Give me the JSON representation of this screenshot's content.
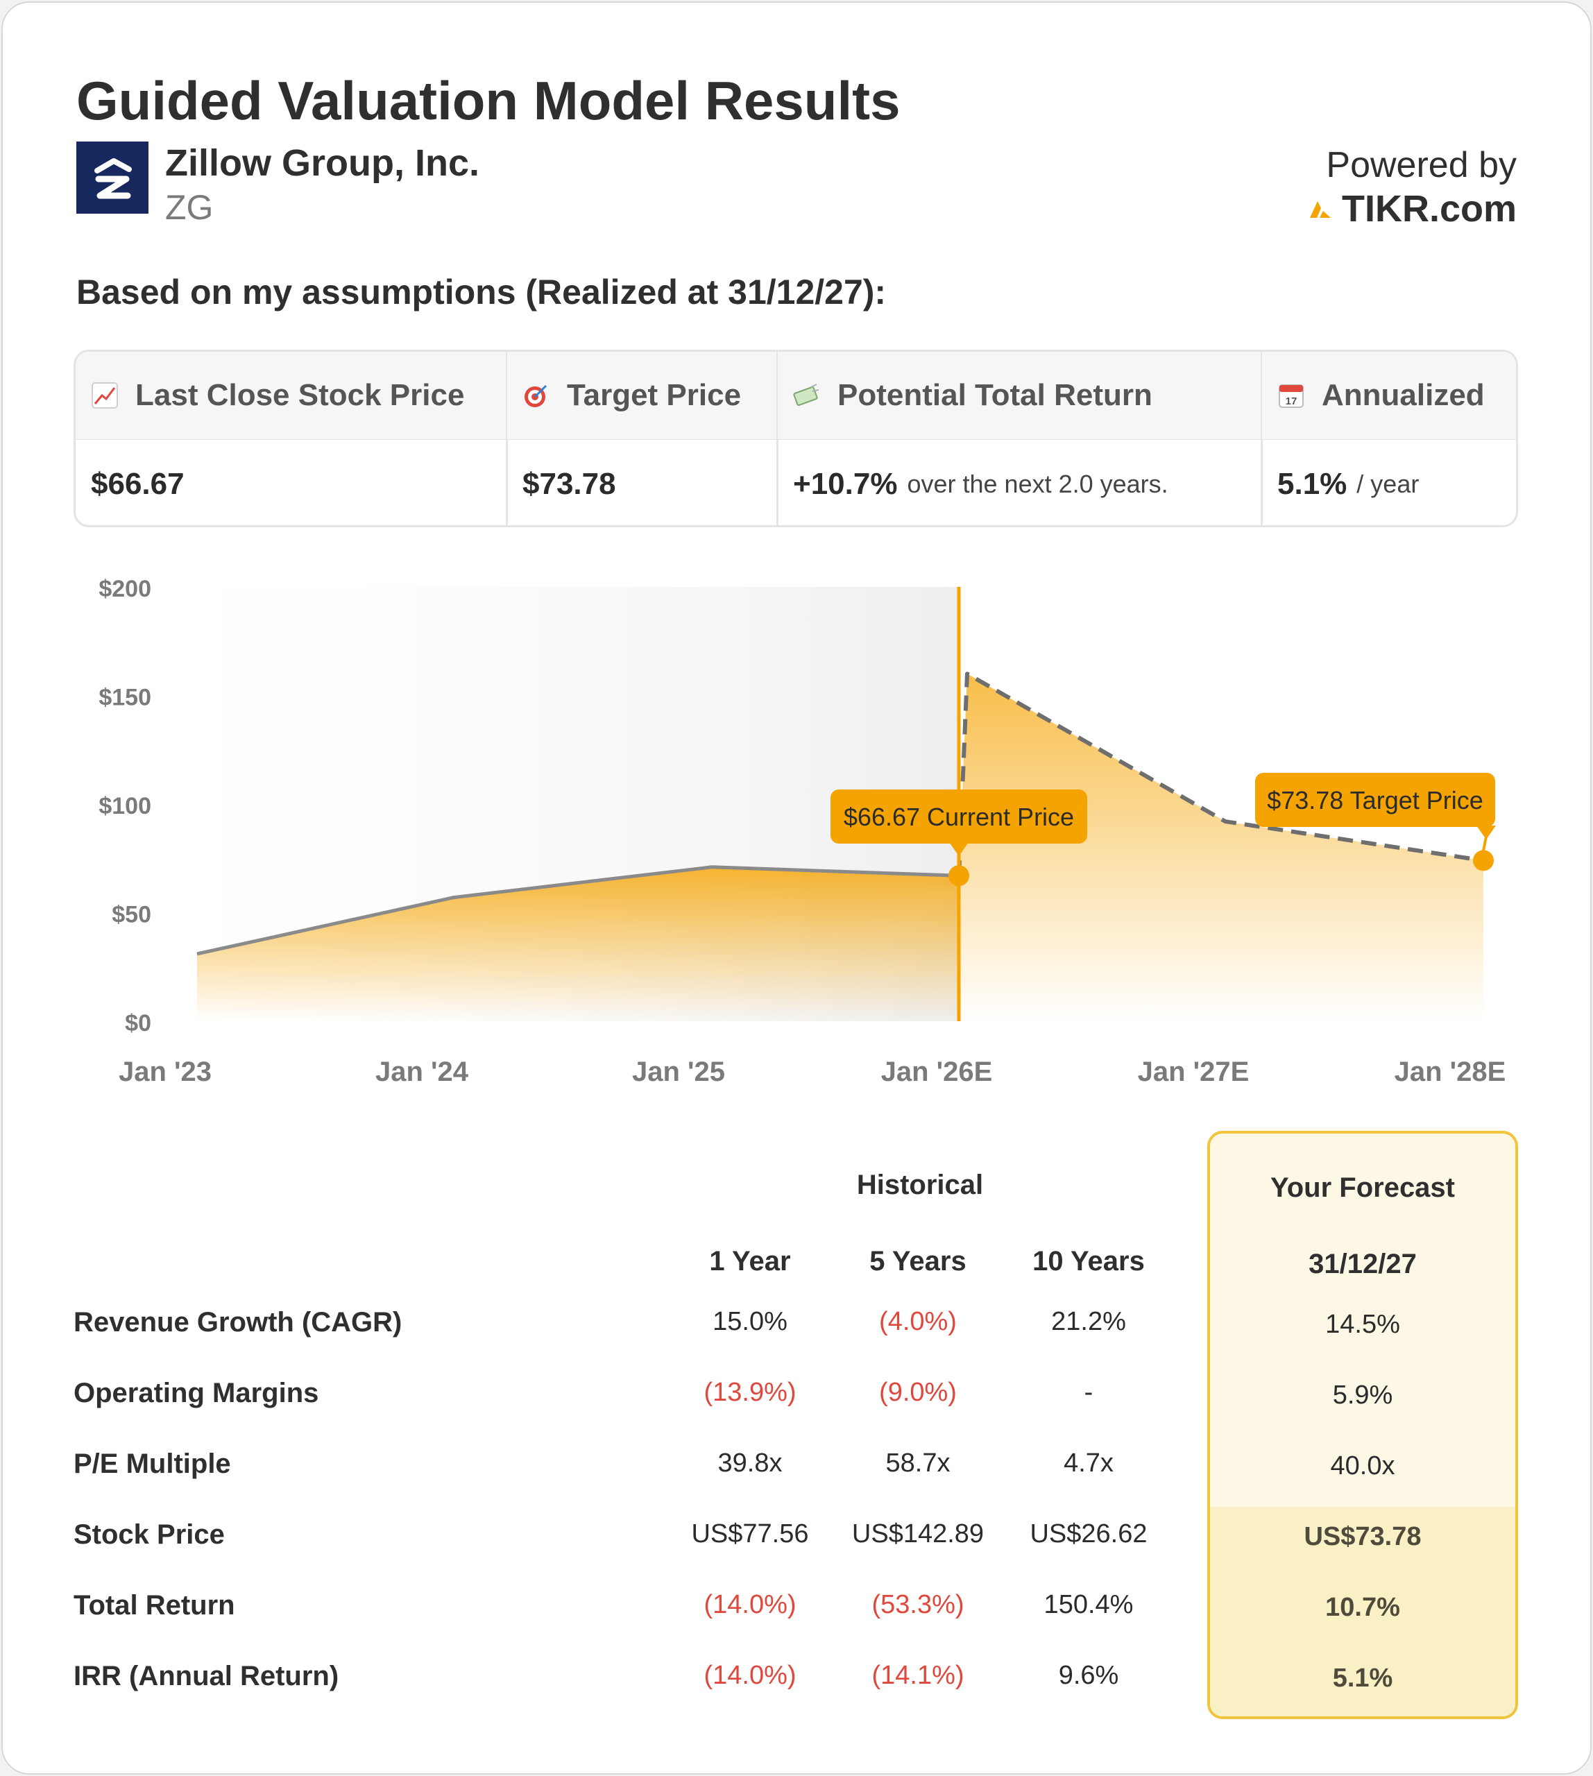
{
  "header": {
    "title": "Guided Valuation Model Results",
    "company": "Zillow Group, Inc.",
    "ticker": "ZG",
    "powered_by": "Powered by",
    "brand": "TIKR.com",
    "assumptions_label": "Based on my assumptions (Realized at 31/12/27):"
  },
  "summary": {
    "columns": [
      {
        "label": "Last Close Stock Price",
        "icon": "chart-up-icon",
        "value": "$66.67",
        "sub": ""
      },
      {
        "label": "Target Price",
        "icon": "target-icon",
        "value": "$73.78",
        "sub": ""
      },
      {
        "label": "Potential Total Return",
        "icon": "money-icon",
        "value": "+10.7%",
        "sub": "over the next 2.0 years."
      },
      {
        "label": "Annualized",
        "icon": "calendar-icon",
        "value": "5.1%",
        "sub": "/ year"
      }
    ],
    "calendar_day": "17"
  },
  "chart_data": {
    "type": "area",
    "y_ticks": [
      "$200",
      "$150",
      "$100",
      "$50",
      "$0"
    ],
    "ylim": [
      0,
      200
    ],
    "x_ticks": [
      "Jan '23",
      "Jan '24",
      "Jan '25",
      "Jan '26E",
      "Jan '27E",
      "Jan '28E"
    ],
    "historical": [
      {
        "x": "Jan '23",
        "y": 31
      },
      {
        "x": "Jan '24",
        "y": 57
      },
      {
        "x": "Jan '25",
        "y": 71
      },
      {
        "x": "Jan '26E",
        "y": 67
      }
    ],
    "forecast": [
      {
        "x": "Jan '26E",
        "y": 67
      },
      {
        "x": "Jan '26E",
        "y": 160
      },
      {
        "x": "Jan '27E",
        "y": 92
      },
      {
        "x": "Jan '28E",
        "y": 74
      }
    ],
    "annotations": {
      "current": "$66.67 Current Price",
      "target": "$73.78 Target Price"
    },
    "colors": {
      "accent": "#f5a300",
      "line": "#8a8a8a",
      "dash": "#6e6e6e"
    }
  },
  "table": {
    "historical_header": "Historical",
    "forecast_header": "Your Forecast",
    "period_headers": [
      "1 Year",
      "5 Years",
      "10 Years"
    ],
    "forecast_date": "31/12/27",
    "rows": [
      {
        "label": "Revenue Growth (CAGR)",
        "values": [
          "15.0%",
          "(4.0%)",
          "21.2%"
        ],
        "forecast": "14.5%"
      },
      {
        "label": "Operating Margins",
        "values": [
          "(13.9%)",
          "(9.0%)",
          "-"
        ],
        "forecast": "5.9%"
      },
      {
        "label": "P/E Multiple",
        "values": [
          "39.8x",
          "58.7x",
          "4.7x"
        ],
        "forecast": "40.0x"
      },
      {
        "label": "Stock Price",
        "values": [
          "US$77.56",
          "US$142.89",
          "US$26.62"
        ],
        "forecast": "US$73.78"
      },
      {
        "label": "Total Return",
        "values": [
          "(14.0%)",
          "(53.3%)",
          "150.4%"
        ],
        "forecast": "10.7%"
      },
      {
        "label": "IRR (Annual Return)",
        "values": [
          "(14.0%)",
          "(14.1%)",
          "9.6%"
        ],
        "forecast": "5.1%"
      }
    ],
    "negative_color": "#e0473d"
  }
}
